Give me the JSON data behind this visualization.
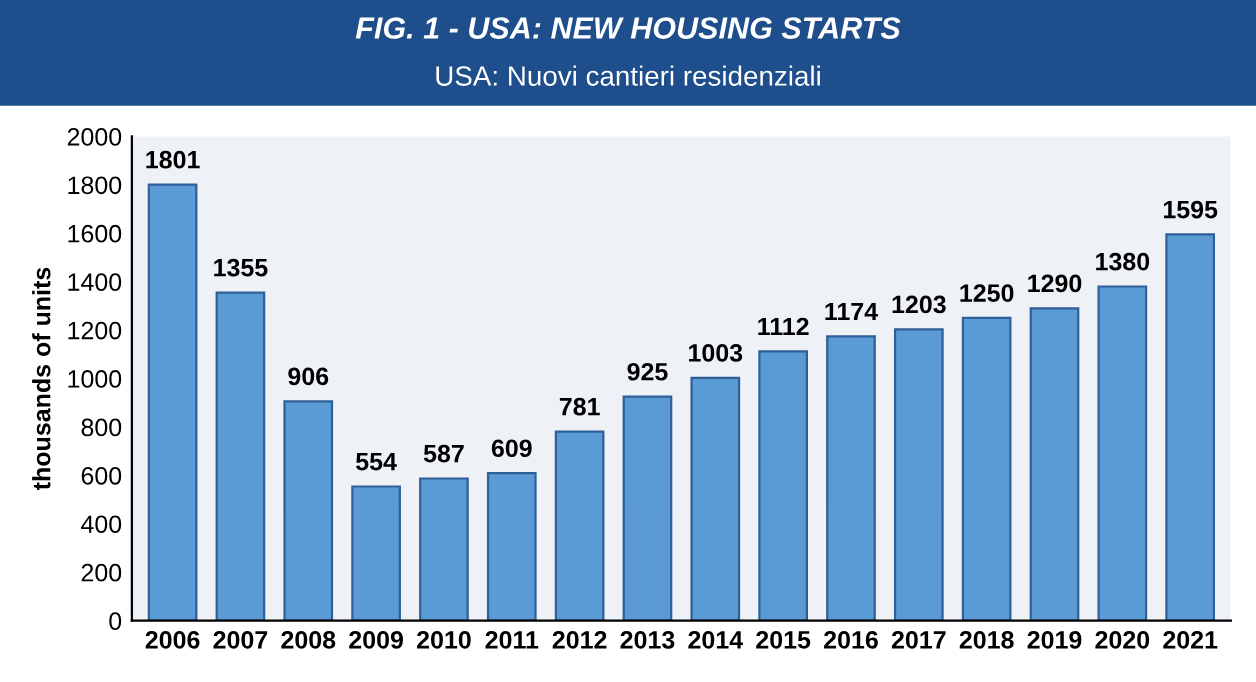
{
  "chart_data": {
    "type": "bar",
    "title": "FIG. 1 - USA: NEW HOUSING STARTS",
    "subtitle": "USA: Nuovi cantieri residenziali",
    "ylabel": "thousands of units",
    "categories": [
      "2006",
      "2007",
      "2008",
      "2009",
      "2010",
      "2011",
      "2012",
      "2013",
      "2014",
      "2015",
      "2016",
      "2017",
      "2018",
      "2019",
      "2020",
      "2021"
    ],
    "values": [
      1801,
      1355,
      906,
      554,
      587,
      609,
      781,
      925,
      1003,
      1112,
      1174,
      1203,
      1250,
      1290,
      1380,
      1595
    ],
    "color": "#5b9bd5",
    "ylim": [
      0,
      2000
    ],
    "yticks": [
      0,
      200,
      400,
      600,
      800,
      1000,
      1200,
      1400,
      1600,
      1800,
      2000
    ],
    "data_labels": true
  }
}
